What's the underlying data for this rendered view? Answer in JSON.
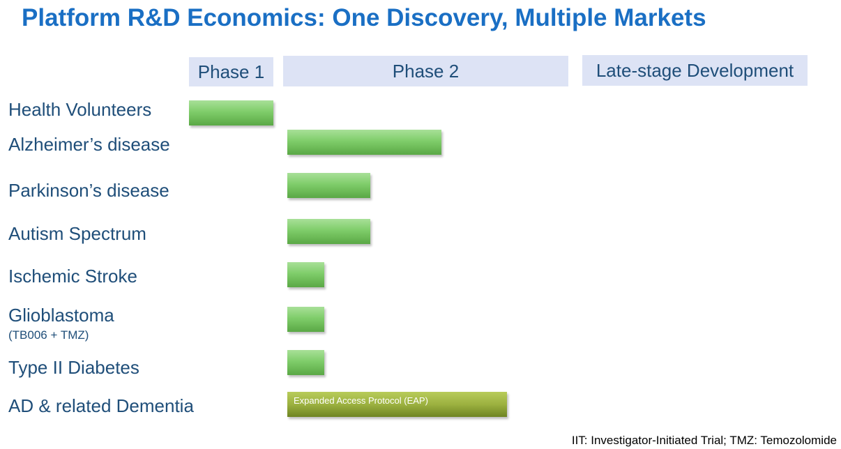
{
  "title": "Platform R&D Economics: One Discovery, Multiple Markets",
  "footnote": "IIT: Investigator-Initiated Trial; TMZ: Temozolomide",
  "chart_data": {
    "type": "bar",
    "orientation": "horizontal",
    "stages": [
      "Phase 1",
      "Phase 2",
      "Late-stage Development"
    ],
    "rows": [
      {
        "label": "Health Volunteers",
        "sublabel": "",
        "bar_text": "",
        "start_stage": 0,
        "progress": 1.0
      },
      {
        "label": "Alzheimer’s disease",
        "sublabel": "",
        "bar_text": "",
        "start_stage": 1,
        "progress": 0.54
      },
      {
        "label": "Parkinson’s disease",
        "sublabel": "",
        "bar_text": "",
        "start_stage": 1,
        "progress": 0.29
      },
      {
        "label": "Autism Spectrum",
        "sublabel": "",
        "bar_text": "",
        "start_stage": 1,
        "progress": 0.29
      },
      {
        "label": "Ischemic Stroke",
        "sublabel": "",
        "bar_text": "",
        "start_stage": 1,
        "progress": 0.13
      },
      {
        "label": "Glioblastoma",
        "sublabel": "(TB006 + TMZ)",
        "bar_text": "",
        "start_stage": 1,
        "progress": 0.13
      },
      {
        "label": "Type II Diabetes",
        "sublabel": "",
        "bar_text": "",
        "start_stage": 1,
        "progress": 0.13
      },
      {
        "label": "AD & related Dementia",
        "sublabel": "",
        "bar_text": "Expanded Access Protocol (EAP)",
        "start_stage": 1,
        "progress": 0.77
      }
    ],
    "colors": {
      "bar": "#7fcd6a",
      "eap_bar": "#9cb140",
      "title": "#1a6fc4",
      "label": "#1f4e79",
      "stage_header": "#dde3f5"
    }
  }
}
